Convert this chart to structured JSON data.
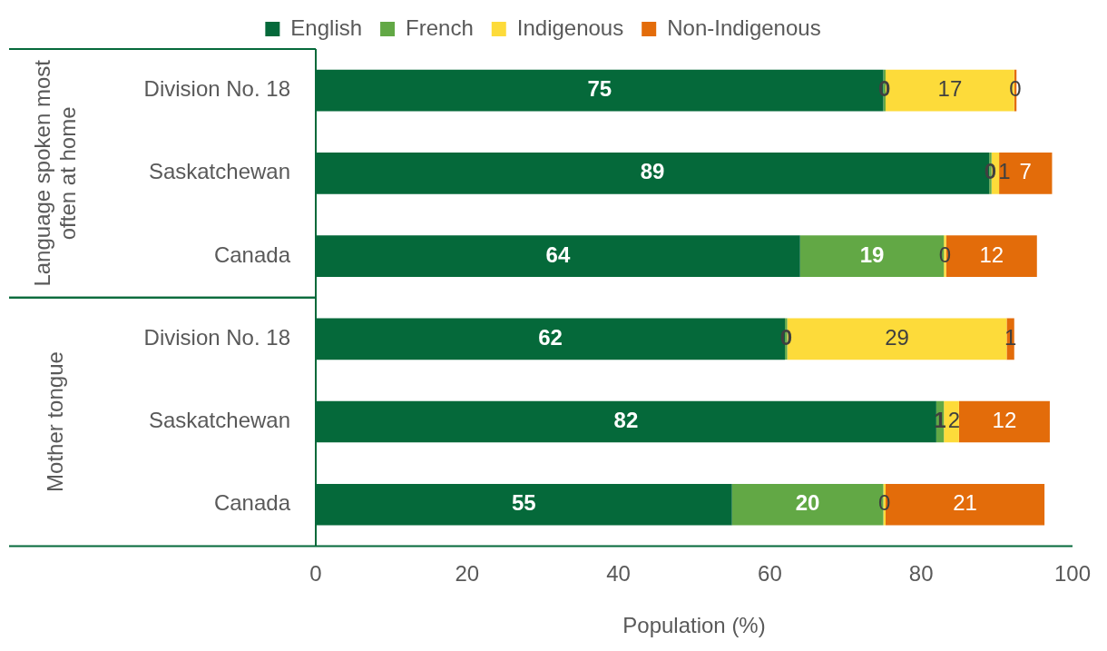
{
  "chart_data": {
    "type": "bar",
    "orientation": "horizontal",
    "stacked": true,
    "categories": [
      "Division No. 18",
      "Saskatchewan",
      "Canada",
      "Division No. 18",
      "Saskatchewan",
      "Canada"
    ],
    "series": [
      {
        "name": "English",
        "color": "#05693a",
        "values": [
          75,
          89,
          64,
          62,
          82,
          55
        ],
        "value_labels": [
          "75",
          "89",
          "64",
          "62",
          "82",
          "55"
        ]
      },
      {
        "name": "French",
        "color": "#62a845",
        "values": [
          0.3,
          0.3,
          19,
          0.3,
          1,
          20
        ],
        "value_labels": [
          "0",
          "0",
          "19",
          "0",
          "1",
          "20"
        ]
      },
      {
        "name": "Indigenous",
        "color": "#fddb3a",
        "values": [
          17,
          1,
          0.3,
          29,
          2,
          0.3
        ],
        "value_labels": [
          "17",
          "1",
          "0",
          "29",
          "2",
          "0"
        ]
      },
      {
        "name": "Non-Indigenous",
        "color": "#e36c0a",
        "values": [
          0.3,
          7,
          12,
          1,
          12,
          21
        ],
        "value_labels": [
          "0",
          "7",
          "12",
          "1",
          "12",
          "21"
        ]
      }
    ],
    "xlabel": "Population (%)",
    "xlim": [
      0,
      100
    ],
    "xticks": [
      0,
      20,
      40,
      60,
      80,
      100
    ],
    "annotations": [
      "Language spoken most often at home",
      "Mother tongue"
    ],
    "grid": false,
    "legend": "top"
  }
}
